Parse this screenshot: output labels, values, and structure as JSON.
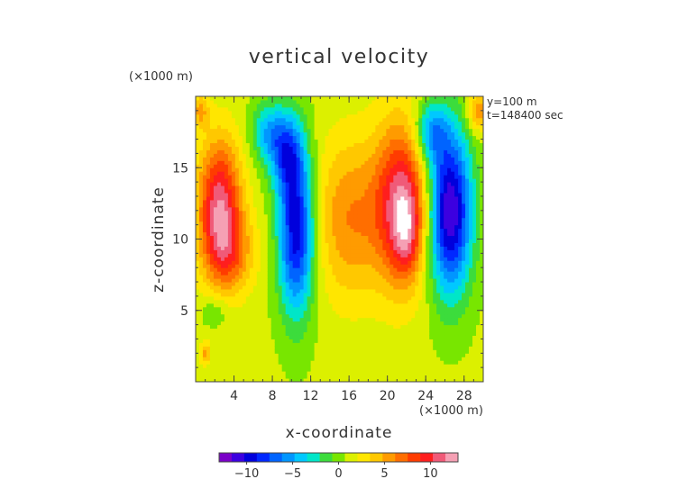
{
  "chart_data": {
    "type": "heatmap",
    "title": "vertical velocity",
    "xlabel": "x-coordinate",
    "ylabel": "z-coordinate",
    "x_unit": "(×1000 m)",
    "y_unit": "(×1000 m)",
    "annotations": [
      "y=100 m",
      "t=148400 sec"
    ],
    "xlim": [
      0,
      30
    ],
    "ylim": [
      0,
      20
    ],
    "x_ticks": [
      4,
      8,
      12,
      16,
      20,
      24,
      28
    ],
    "y_ticks": [
      5,
      10,
      15
    ],
    "colorbar": {
      "min": -13,
      "max": 13,
      "ticks": [
        -10,
        -5,
        0,
        5,
        10
      ],
      "colors": [
        "#7a00c8",
        "#3c00e0",
        "#0000dc",
        "#0028ff",
        "#0064ff",
        "#0096ff",
        "#00c8ff",
        "#00e6c8",
        "#3cdc3c",
        "#78e600",
        "#dcf000",
        "#ffe600",
        "#ffc800",
        "#ff9b00",
        "#ff6e00",
        "#ff3c00",
        "#ff1e1e",
        "#f05a78",
        "#f5a0b4"
      ]
    },
    "background_value": 1,
    "features": [
      {
        "x": 2.5,
        "z": 12.5,
        "sx": 1.6,
        "sz": 3.2,
        "value": 10
      },
      {
        "x": 3.5,
        "z": 9.0,
        "sx": 1.8,
        "sz": 2.0,
        "value": 5
      },
      {
        "x": 10.5,
        "z": 10.5,
        "sx": 1.3,
        "sz": 4.0,
        "value": -11
      },
      {
        "x": 9.5,
        "z": 16.0,
        "sx": 1.2,
        "sz": 2.0,
        "value": -7
      },
      {
        "x": 7.5,
        "z": 17.5,
        "sx": 1.2,
        "sz": 1.5,
        "value": -5
      },
      {
        "x": 16.0,
        "z": 11.5,
        "sx": 2.5,
        "sz": 4.0,
        "value": 5
      },
      {
        "x": 21.5,
        "z": 12.5,
        "sx": 2.0,
        "sz": 4.0,
        "value": 10
      },
      {
        "x": 22.0,
        "z": 10.5,
        "sx": 1.0,
        "sz": 2.0,
        "value": 4
      },
      {
        "x": 26.5,
        "z": 12.0,
        "sx": 1.6,
        "sz": 4.0,
        "value": -13
      },
      {
        "x": 24.5,
        "z": 17.5,
        "sx": 1.2,
        "sz": 1.5,
        "value": -6
      },
      {
        "x": 2.0,
        "z": 5.0,
        "sx": 1.0,
        "sz": 0.8,
        "value": -2
      },
      {
        "x": 1.0,
        "z": 2.0,
        "sx": 0.4,
        "sz": 0.6,
        "value": 4
      },
      {
        "x": 29.5,
        "z": 19.0,
        "sx": 0.8,
        "sz": 1.0,
        "value": 5
      },
      {
        "x": 0.5,
        "z": 19.0,
        "sx": 0.6,
        "sz": 0.8,
        "value": 4
      }
    ]
  }
}
